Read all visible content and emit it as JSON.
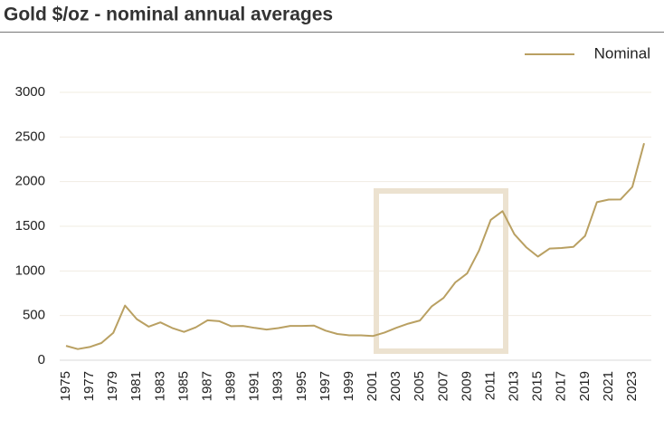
{
  "chart_data": {
    "type": "line",
    "title": "Gold $/oz - nominal annual averages",
    "categories": [
      "1975",
      null,
      "1977",
      null,
      "1979",
      null,
      "1981",
      null,
      "1983",
      null,
      "1985",
      null,
      "1987",
      null,
      "1989",
      null,
      "1991",
      null,
      "1993",
      null,
      "1995",
      null,
      "1997",
      null,
      "1999",
      null,
      "2001",
      null,
      "2003",
      null,
      "2005",
      null,
      "2007",
      null,
      "2009",
      null,
      "2011",
      null,
      "2013",
      null,
      "2015",
      null,
      "2017",
      null,
      "2019",
      null,
      "2021",
      null,
      "2023",
      null
    ],
    "series": [
      {
        "name": "Nominal",
        "color": "#b9a062",
        "values": [
          161,
          125,
          148,
          193,
          306,
          612,
          460,
          376,
          424,
          361,
          317,
          368,
          447,
          437,
          381,
          384,
          362,
          344,
          360,
          384,
          384,
          388,
          331,
          294,
          279,
          279,
          271,
          310,
          363,
          409,
          445,
          604,
          697,
          872,
          972,
          1225,
          1572,
          1669,
          1411,
          1266,
          1160,
          1251,
          1257,
          1269,
          1393,
          1770,
          1799,
          1800,
          1941,
          2430
        ]
      }
    ],
    "ylim": [
      0,
      3000
    ],
    "yticks": [
      0,
      500,
      1000,
      1500,
      2000,
      2500,
      3000
    ],
    "grid": true,
    "legend": "top-right"
  }
}
